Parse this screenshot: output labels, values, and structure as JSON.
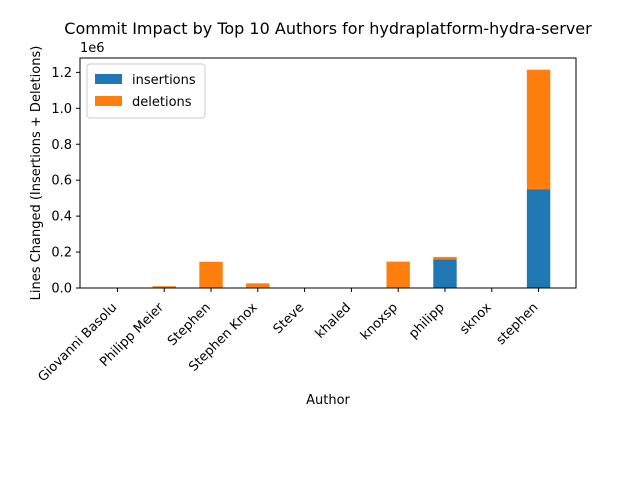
{
  "chart_data": {
    "type": "bar",
    "stacked": true,
    "title": "Commit Impact by Top 10 Authors for hydraplatform-hydra-server",
    "xlabel": "Author",
    "ylabel": "Lines Changed (Insertions + Deletions)",
    "y_scale_note": "1e6",
    "categories": [
      "Giovanni Basolu",
      "Philipp Meier",
      "Stephen",
      "Stephen Knox",
      "Steve",
      "khaled",
      "knoxsp",
      "philipp",
      "sknox",
      "stephen"
    ],
    "series": [
      {
        "name": "insertions",
        "color": "#1f77b4",
        "values": [
          0,
          1000,
          2000,
          3000,
          0,
          0,
          2000,
          160000,
          0,
          550000
        ]
      },
      {
        "name": "deletions",
        "color": "#ff7f0e",
        "values": [
          0,
          9000,
          144000,
          23000,
          0,
          0,
          145000,
          13000,
          0,
          665000
        ]
      }
    ],
    "ylim": [
      0,
      1280000
    ],
    "yticks": [
      0,
      200000,
      400000,
      600000,
      800000,
      1000000,
      1200000
    ],
    "ytick_labels": [
      "0.0",
      "0.2",
      "0.4",
      "0.6",
      "0.8",
      "1.0",
      "1.2"
    ],
    "legend_position": "top-left",
    "grid": false
  }
}
